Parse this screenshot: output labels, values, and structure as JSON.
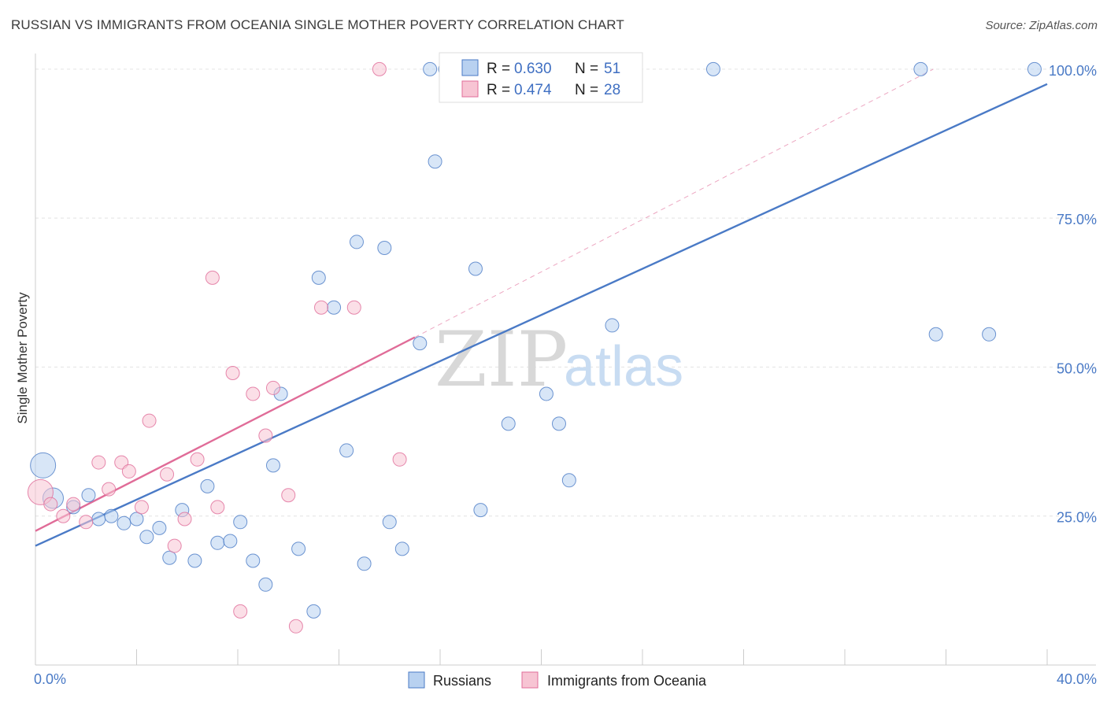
{
  "title": "RUSSIAN VS IMMIGRANTS FROM OCEANIA SINGLE MOTHER POVERTY CORRELATION CHART",
  "source": "Source: ZipAtlas.com",
  "watermark": {
    "zip": "ZIP",
    "atlas": "atlas"
  },
  "colors": {
    "blue": "#4a7ac6",
    "blue_fill": "#b8d1f0",
    "pink": "#e06c98",
    "pink_fill": "#f7c4d3"
  },
  "chart_data": {
    "type": "scatter",
    "ylabel": "Single Mother Poverty",
    "xlim": [
      0,
      40
    ],
    "ylim": [
      0,
      105
    ],
    "x_tick_labels": [
      {
        "value": 0,
        "label": "0.0%"
      },
      {
        "value": 40,
        "label": "40.0%"
      }
    ],
    "y_tick_labels": [
      {
        "value": 25,
        "label": "25.0%"
      },
      {
        "value": 50,
        "label": "50.0%"
      },
      {
        "value": 75,
        "label": "75.0%"
      },
      {
        "value": 100,
        "label": "100.0%"
      }
    ],
    "legend": [
      {
        "series": "Russians",
        "r_label": "R =",
        "r": "0.630",
        "n_label": "N =",
        "n": "51"
      },
      {
        "series": "Immigrants from Oceania",
        "r_label": "R =",
        "r": "0.474",
        "n_label": "N =",
        "n": "28"
      }
    ],
    "series": [
      {
        "name": "Russians",
        "color": "#4a7ac6",
        "trend": {
          "x1": 0,
          "y1": 20.0,
          "x2": 40,
          "y2": 97.5
        },
        "points": [
          {
            "x": 0.3,
            "y": 33.5,
            "size": "large"
          },
          {
            "x": 0.7,
            "y": 28.0,
            "size": "medium"
          },
          {
            "x": 1.5,
            "y": 26.5
          },
          {
            "x": 2.1,
            "y": 28.5
          },
          {
            "x": 2.5,
            "y": 24.5
          },
          {
            "x": 3.0,
            "y": 25.0
          },
          {
            "x": 3.5,
            "y": 23.8
          },
          {
            "x": 4.0,
            "y": 24.5
          },
          {
            "x": 4.4,
            "y": 21.5
          },
          {
            "x": 4.9,
            "y": 23.0
          },
          {
            "x": 5.3,
            "y": 18.0
          },
          {
            "x": 5.8,
            "y": 26.0
          },
          {
            "x": 6.3,
            "y": 17.5
          },
          {
            "x": 6.8,
            "y": 30.0
          },
          {
            "x": 7.2,
            "y": 20.5
          },
          {
            "x": 7.7,
            "y": 20.8
          },
          {
            "x": 8.1,
            "y": 24.0
          },
          {
            "x": 8.6,
            "y": 17.5
          },
          {
            "x": 9.1,
            "y": 13.5
          },
          {
            "x": 9.4,
            "y": 33.5
          },
          {
            "x": 9.7,
            "y": 45.5
          },
          {
            "x": 10.4,
            "y": 19.5
          },
          {
            "x": 11.0,
            "y": 9.0
          },
          {
            "x": 11.2,
            "y": 65.0
          },
          {
            "x": 11.8,
            "y": 60.0
          },
          {
            "x": 12.3,
            "y": 36.0
          },
          {
            "x": 12.7,
            "y": 71.0
          },
          {
            "x": 13.0,
            "y": 17.0
          },
          {
            "x": 13.8,
            "y": 70.0
          },
          {
            "x": 14.0,
            "y": 24.0
          },
          {
            "x": 14.5,
            "y": 19.5
          },
          {
            "x": 15.2,
            "y": 54.0
          },
          {
            "x": 15.6,
            "y": 100.0
          },
          {
            "x": 15.8,
            "y": 84.5
          },
          {
            "x": 16.2,
            "y": 100.0
          },
          {
            "x": 17.0,
            "y": 100.0
          },
          {
            "x": 17.4,
            "y": 66.5
          },
          {
            "x": 17.5,
            "y": 100.0
          },
          {
            "x": 17.6,
            "y": 26.0
          },
          {
            "x": 18.0,
            "y": 100.0
          },
          {
            "x": 18.7,
            "y": 40.5
          },
          {
            "x": 20.2,
            "y": 45.5
          },
          {
            "x": 20.7,
            "y": 40.5
          },
          {
            "x": 21.1,
            "y": 31.0
          },
          {
            "x": 22.5,
            "y": 100.0
          },
          {
            "x": 22.8,
            "y": 57.0
          },
          {
            "x": 26.8,
            "y": 100.0
          },
          {
            "x": 35.0,
            "y": 100.0
          },
          {
            "x": 35.6,
            "y": 55.5
          },
          {
            "x": 37.7,
            "y": 55.5
          },
          {
            "x": 39.5,
            "y": 100.0
          }
        ]
      },
      {
        "name": "Immigrants from Oceania",
        "color": "#e06c98",
        "trend": {
          "x1": 0,
          "y1": 22.5,
          "x2": 15.0,
          "y2": 55.0
        },
        "trend_ext": {
          "x1": 15.0,
          "y1": 55.0,
          "x2": 35.5,
          "y2": 100.0
        },
        "points": [
          {
            "x": 0.2,
            "y": 29.0,
            "size": "large"
          },
          {
            "x": 1.1,
            "y": 25.0
          },
          {
            "x": 1.5,
            "y": 27.0
          },
          {
            "x": 2.0,
            "y": 24.0
          },
          {
            "x": 2.5,
            "y": 34.0
          },
          {
            "x": 2.9,
            "y": 29.5
          },
          {
            "x": 3.4,
            "y": 34.0
          },
          {
            "x": 3.7,
            "y": 32.5
          },
          {
            "x": 4.2,
            "y": 26.5
          },
          {
            "x": 4.5,
            "y": 41.0
          },
          {
            "x": 5.2,
            "y": 32.0
          },
          {
            "x": 5.5,
            "y": 20.0
          },
          {
            "x": 5.9,
            "y": 24.5
          },
          {
            "x": 6.4,
            "y": 34.5
          },
          {
            "x": 7.0,
            "y": 65.0
          },
          {
            "x": 7.2,
            "y": 26.5
          },
          {
            "x": 7.8,
            "y": 49.0
          },
          {
            "x": 8.1,
            "y": 9.0
          },
          {
            "x": 8.6,
            "y": 45.5
          },
          {
            "x": 9.1,
            "y": 38.5
          },
          {
            "x": 9.4,
            "y": 46.5
          },
          {
            "x": 10.0,
            "y": 28.5
          },
          {
            "x": 10.3,
            "y": 6.5
          },
          {
            "x": 11.3,
            "y": 60.0
          },
          {
            "x": 12.6,
            "y": 60.0
          },
          {
            "x": 13.6,
            "y": 100.0
          },
          {
            "x": 14.4,
            "y": 34.5
          },
          {
            "x": 0.6,
            "y": 27.0
          }
        ]
      }
    ]
  }
}
